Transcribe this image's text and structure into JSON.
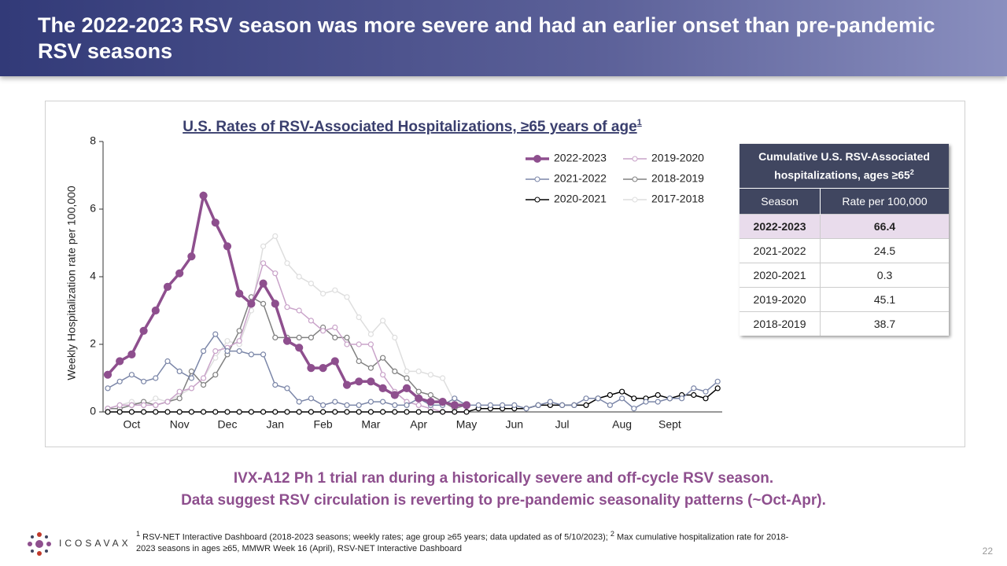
{
  "slide": {
    "title": "The 2022-2023 RSV season was more severe and had an earlier onset than pre-pandemic RSV seasons",
    "message_line1": "IVX-A12 Ph 1 trial ran during a historically severe and off-cycle RSV season.",
    "message_line2": "Data suggest RSV circulation is reverting to pre-pandemic seasonality patterns (~Oct-Apr).",
    "footnote_mark1": "1",
    "footnote_text1": "RSV-NET Interactive Dashboard (2018-2023 seasons; weekly rates; age group ≥65 years; data updated as of 5/10/2023);",
    "footnote_mark2": "2",
    "footnote_text2": "Max cumulative hospitalization rate for 2018-2023 seasons in  ages ≥65, MMWR Week 16 (April), RSV-NET Interactive Dashboard",
    "logo": "ICOSAVAX",
    "page_number": "22"
  },
  "chart_data": {
    "type": "line",
    "title": "U.S. Rates of RSV-Associated Hospitalizations, ≥65 years of age",
    "title_note": "1",
    "ylabel": "Weekly Hospitalization rate per 100,000",
    "ylim": [
      0,
      8
    ],
    "yticks": [
      0,
      2,
      4,
      6,
      8
    ],
    "grid": false,
    "categories": [
      null,
      null,
      "Oct",
      null,
      null,
      null,
      "Nov",
      null,
      null,
      null,
      "Dec",
      null,
      null,
      null,
      "Jan",
      null,
      null,
      null,
      "Feb",
      null,
      null,
      null,
      "Mar",
      null,
      null,
      null,
      "Apr",
      null,
      null,
      null,
      "May",
      null,
      null,
      null,
      "Jun",
      null,
      null,
      null,
      "Jul",
      null,
      null,
      null,
      null,
      "Aug",
      null,
      null,
      null,
      "Sept",
      null,
      null,
      null,
      null
    ],
    "series": [
      {
        "name": "2022-2023",
        "color": "#8e4f8e",
        "values": [
          1.1,
          1.5,
          1.7,
          2.4,
          3.0,
          3.7,
          4.1,
          4.6,
          6.4,
          5.6,
          4.9,
          3.5,
          3.2,
          3.8,
          3.2,
          2.1,
          1.9,
          1.3,
          1.3,
          1.5,
          0.8,
          0.9,
          0.9,
          0.7,
          0.5,
          0.7,
          0.4,
          0.3,
          0.3,
          0.2,
          0.2,
          null,
          null,
          null,
          null,
          null,
          null,
          null,
          null,
          null,
          null,
          null,
          null,
          null,
          null,
          null,
          null,
          null,
          null,
          null,
          null,
          null
        ]
      },
      {
        "name": "2021-2022",
        "color": "#7b86a8",
        "values": [
          0.7,
          0.9,
          1.1,
          0.9,
          1.0,
          1.5,
          1.2,
          1.0,
          1.8,
          2.3,
          1.8,
          1.8,
          1.7,
          1.7,
          0.8,
          0.7,
          0.3,
          0.4,
          0.2,
          0.3,
          0.2,
          0.2,
          0.3,
          0.3,
          0.2,
          0.2,
          0.4,
          0.2,
          0.2,
          0.4,
          0.2,
          0.2,
          0.2,
          0.2,
          0.2,
          0.1,
          0.2,
          0.3,
          0.2,
          0.2,
          0.4,
          0.4,
          0.2,
          0.4,
          0.1,
          0.3,
          0.3,
          0.4,
          0.4,
          0.7,
          0.6,
          0.9
        ]
      },
      {
        "name": "2020-2021",
        "color": "#000000",
        "values": [
          0,
          0,
          0,
          0,
          0,
          0,
          0,
          0,
          0,
          0,
          0,
          0,
          0,
          0,
          0,
          0,
          0,
          0,
          0,
          0,
          0,
          0,
          0,
          0,
          0,
          0,
          0,
          0,
          0,
          0,
          0,
          0.1,
          0.1,
          0.1,
          0.1,
          0.1,
          0.2,
          0.2,
          0.2,
          0.2,
          0.2,
          0.4,
          0.5,
          0.6,
          0.4,
          0.4,
          0.5,
          0.4,
          0.5,
          0.5,
          0.4,
          0.7
        ]
      },
      {
        "name": "2019-2020",
        "color": "#c9a3c9",
        "values": [
          0.1,
          0.2,
          0.2,
          0.2,
          0.2,
          0.3,
          0.6,
          0.7,
          1.0,
          1.8,
          1.9,
          2.1,
          3.2,
          4.4,
          4.1,
          3.1,
          3.0,
          2.7,
          2.4,
          2.5,
          2.0,
          2.0,
          2.0,
          1.1,
          0.6,
          0.3,
          0.2,
          0.1,
          0,
          0,
          0,
          null,
          null,
          null,
          null,
          null,
          null,
          null,
          null,
          null,
          null,
          null,
          null,
          null,
          null,
          null,
          null,
          null,
          null,
          null,
          null,
          null
        ]
      },
      {
        "name": "2018-2019",
        "color": "#808080",
        "values": [
          0.1,
          0.1,
          0.2,
          0.3,
          0.2,
          0.3,
          0.4,
          1.2,
          0.8,
          1.1,
          1.7,
          2.4,
          3.4,
          3.2,
          2.2,
          2.2,
          2.2,
          2.2,
          2.5,
          2.2,
          2.2,
          1.5,
          1.3,
          1.6,
          1.2,
          1.0,
          0.6,
          0.5,
          0.3,
          0.1,
          0.2,
          null,
          null,
          null,
          null,
          null,
          null,
          null,
          null,
          null,
          null,
          null,
          null,
          null,
          null,
          null,
          null,
          null,
          null,
          null,
          null,
          null
        ]
      },
      {
        "name": "2017-2018",
        "color": "#dedede",
        "values": [
          0.1,
          0.2,
          0.3,
          0.2,
          0.4,
          0.3,
          0.5,
          0.7,
          1.0,
          1.6,
          2.1,
          2.0,
          3.0,
          4.9,
          5.2,
          4.4,
          4.0,
          3.8,
          3.5,
          3.6,
          3.4,
          2.8,
          2.3,
          2.7,
          2.2,
          1.2,
          1.2,
          1.1,
          1.0,
          0.3,
          0.2,
          null,
          null,
          null,
          null,
          null,
          null,
          null,
          null,
          null,
          null,
          null,
          null,
          null,
          null,
          null,
          null,
          null,
          null,
          null,
          null,
          null
        ]
      }
    ]
  },
  "table": {
    "title": "Cumulative U.S. RSV-Associated hospitalizations, ages ≥65",
    "title_note": "2",
    "header": [
      "Season",
      "Rate per 100,000"
    ],
    "rows": [
      [
        "2022-2023",
        "66.4"
      ],
      [
        "2021-2022",
        "24.5"
      ],
      [
        "2020-2021",
        "0.3"
      ],
      [
        "2019-2020",
        "45.1"
      ],
      [
        "2018-2019",
        "38.7"
      ]
    ]
  }
}
